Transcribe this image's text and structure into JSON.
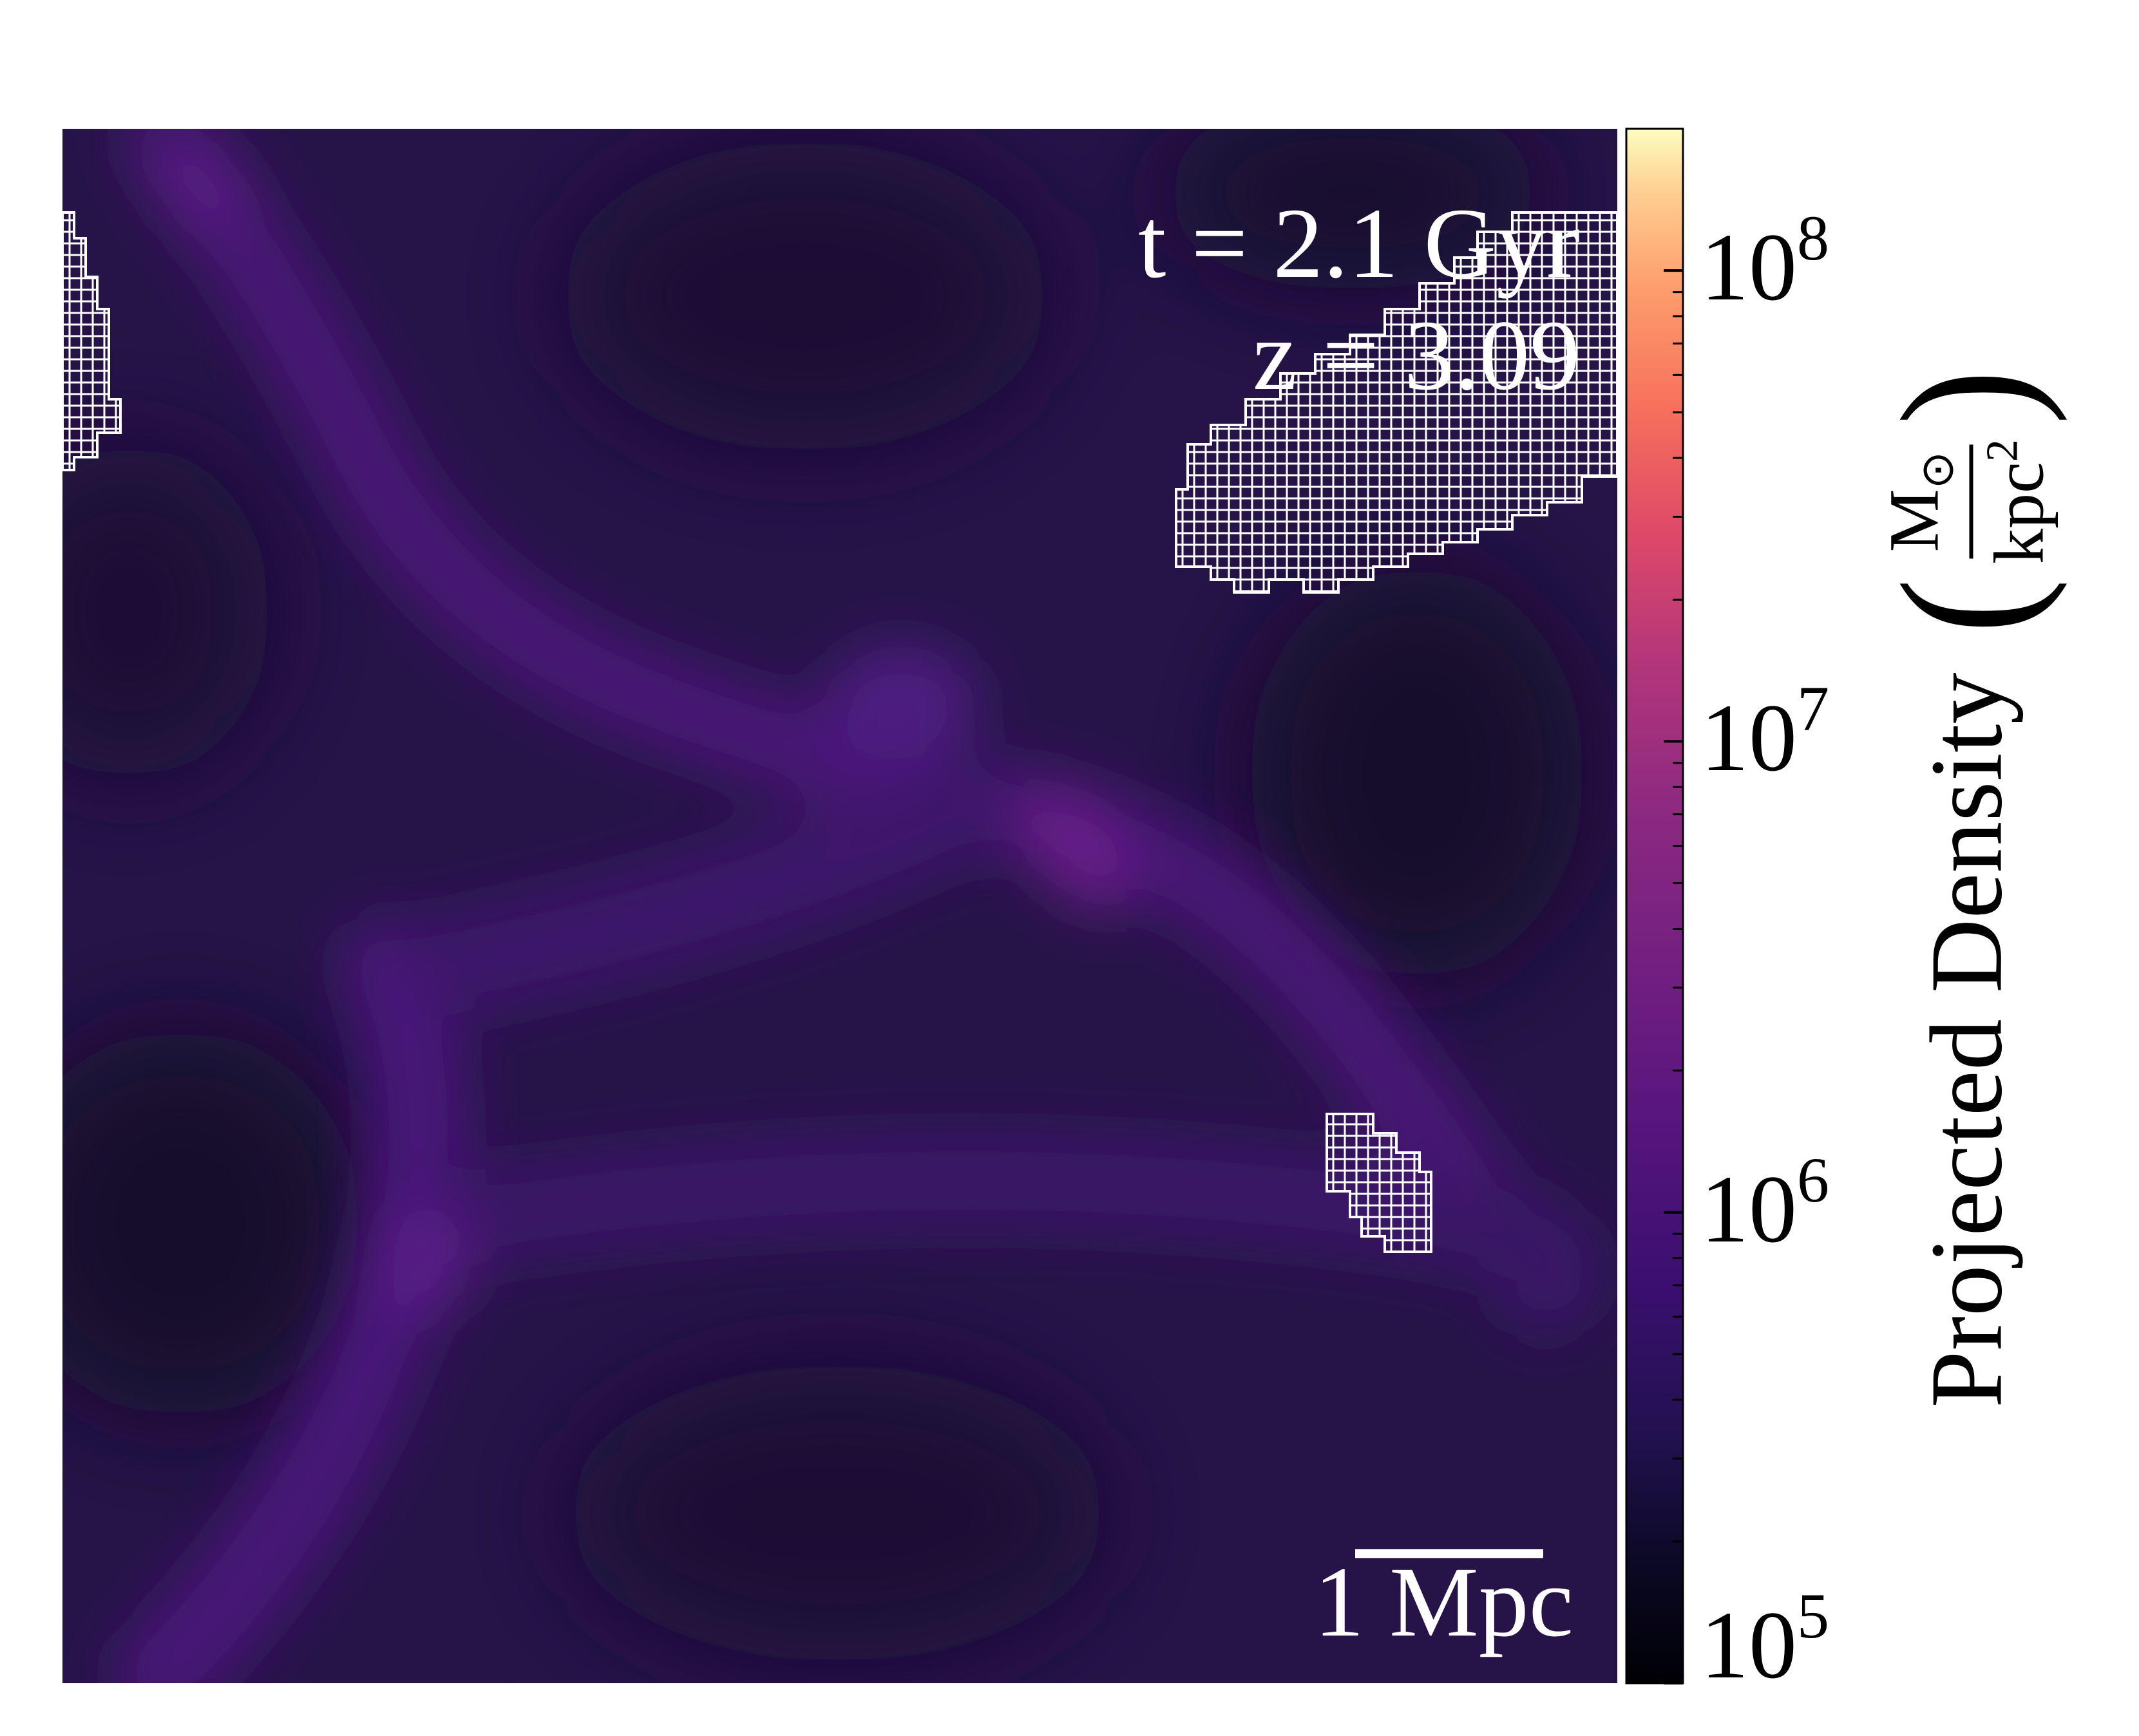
{
  "chart_data": {
    "type": "heatmap",
    "title": "",
    "annotations": {
      "time": "t = 2.1 Gyr",
      "redshift": "z = 3.09",
      "scale_bar": "1 Mpc"
    },
    "colorbar": {
      "label": "Projected Density",
      "unit_numerator": "M",
      "unit_numerator_symbol": "⊙",
      "unit_denominator": "kpc",
      "unit_denominator_exponent": "2",
      "scale": "log",
      "range": [
        100000,
        200000000
      ],
      "ticks": [
        {
          "base": "10",
          "exp": "5",
          "value": 100000
        },
        {
          "base": "10",
          "exp": "6",
          "value": 1000000
        },
        {
          "base": "10",
          "exp": "7",
          "value": 10000000
        },
        {
          "base": "10",
          "exp": "8",
          "value": 100000000
        }
      ],
      "colormap": "magma"
    },
    "density_field": {
      "background_value": 250000,
      "filament_peak_value": 900000
    },
    "grid_overlays": [
      {
        "name": "top-left-region"
      },
      {
        "name": "top-right-region"
      },
      {
        "name": "lower-right-region"
      }
    ]
  },
  "colors": {
    "background": "#ffffff",
    "overlay": "#ffffff",
    "field_low": "#140e2d",
    "field_mid": "#2a1553",
    "field_high": "#5c1a86"
  }
}
